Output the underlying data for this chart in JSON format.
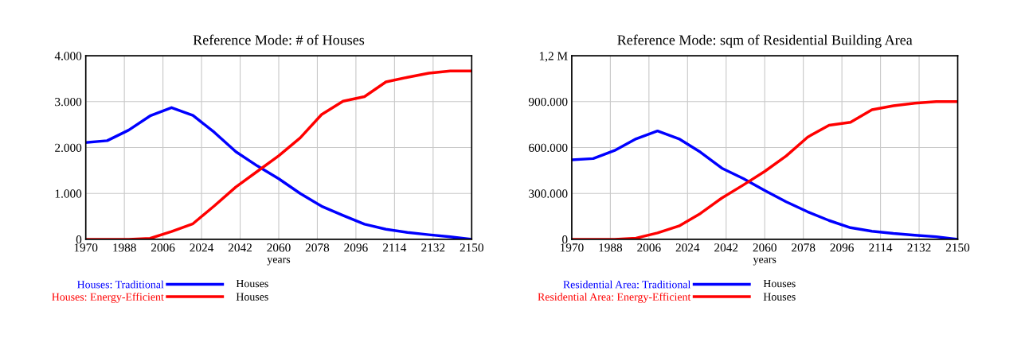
{
  "chart_data": [
    {
      "type": "line",
      "title": "Reference Mode: # of Houses",
      "xlabel": "years",
      "x": [
        1970,
        1980,
        1990,
        2000,
        2010,
        2020,
        2030,
        2040,
        2050,
        2060,
        2070,
        2080,
        2090,
        2100,
        2110,
        2120,
        2130,
        2140,
        2150
      ],
      "series": [
        {
          "name": "Houses: Traditional",
          "color": "#0000ff",
          "values": [
            2110,
            2150,
            2380,
            2690,
            2870,
            2700,
            2330,
            1910,
            1600,
            1320,
            1000,
            720,
            520,
            330,
            220,
            150,
            100,
            55,
            0
          ]
        },
        {
          "name": "Houses: Energy-Efficient",
          "color": "#ff0000",
          "values": [
            0,
            0,
            0,
            20,
            170,
            340,
            730,
            1140,
            1480,
            1820,
            2210,
            2720,
            3010,
            3110,
            3430,
            3530,
            3620,
            3670,
            3670
          ]
        }
      ],
      "xlim": [
        1970,
        2150
      ],
      "xticks": [
        1970,
        1988,
        2006,
        2024,
        2042,
        2060,
        2078,
        2096,
        2114,
        2132,
        2150
      ],
      "ylim": [
        0,
        4000
      ],
      "yticks": [
        {
          "value": 0,
          "label": "0"
        },
        {
          "value": 1000,
          "label": "1.000"
        },
        {
          "value": 2000,
          "label": "2.000"
        },
        {
          "value": 3000,
          "label": "3.000"
        },
        {
          "value": 4000,
          "label": "4.000"
        }
      ],
      "grid": true,
      "legend": "bottom",
      "annotations": [
        "Houses",
        "Houses"
      ]
    },
    {
      "type": "line",
      "title": "Reference Mode: sqm of Residential Building Area",
      "xlabel": "years",
      "x": [
        1970,
        1980,
        1990,
        2000,
        2010,
        2020,
        2030,
        2040,
        2050,
        2060,
        2070,
        2080,
        2090,
        2100,
        2110,
        2120,
        2130,
        2140,
        2150
      ],
      "series": [
        {
          "name": "Residential Area: Traditional",
          "color": "#0000ff",
          "values": [
            520000,
            528000,
            581000,
            657000,
            708000,
            657000,
            570000,
            465000,
            397000,
            319000,
            245000,
            180000,
            123000,
            76000,
            53000,
            38000,
            27000,
            17000,
            0
          ]
        },
        {
          "name": "Residential Area: Energy-Efficient",
          "color": "#ff0000",
          "values": [
            0,
            0,
            0,
            8000,
            42000,
            87000,
            169000,
            270000,
            355000,
            444000,
            545000,
            668000,
            746000,
            765000,
            847000,
            873000,
            890000,
            900000,
            900000
          ]
        }
      ],
      "xlim": [
        1970,
        2150
      ],
      "xticks": [
        1970,
        1988,
        2006,
        2024,
        2042,
        2060,
        2078,
        2096,
        2114,
        2132,
        2150
      ],
      "ylim": [
        0,
        1200000
      ],
      "yticks": [
        {
          "value": 0,
          "label": "0"
        },
        {
          "value": 300000,
          "label": "300.000"
        },
        {
          "value": 600000,
          "label": "600.000"
        },
        {
          "value": 900000,
          "label": "900.000"
        },
        {
          "value": 1200000,
          "label": "1,2 M"
        }
      ],
      "grid": true,
      "legend": "bottom",
      "annotations": [
        "Houses",
        "Houses"
      ]
    }
  ]
}
